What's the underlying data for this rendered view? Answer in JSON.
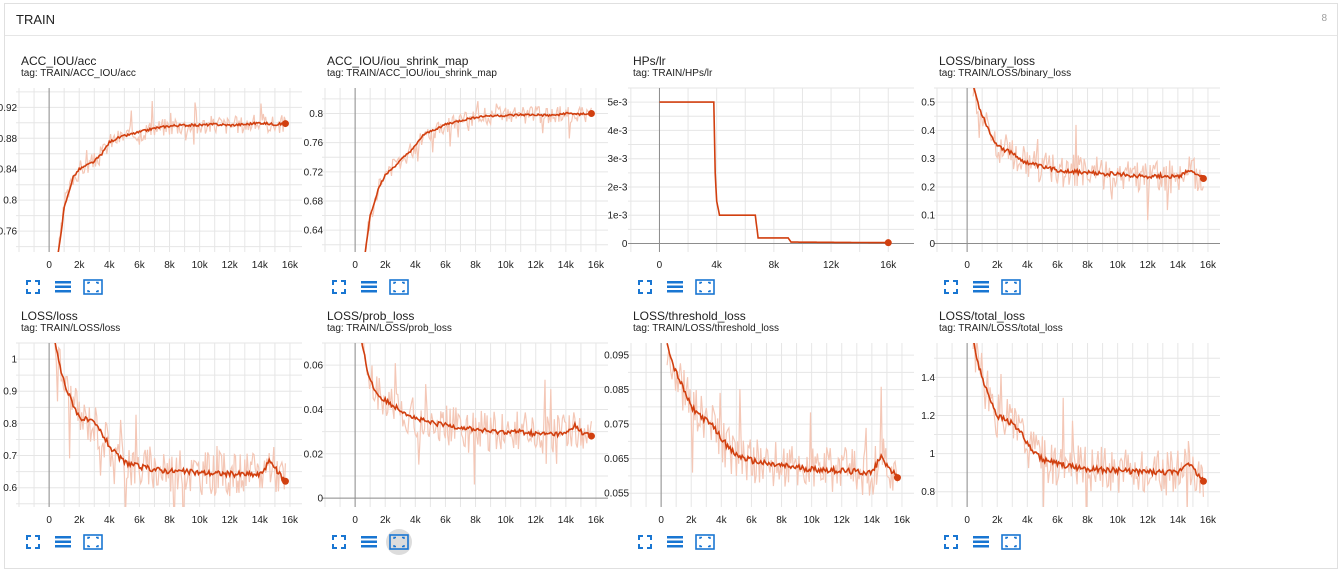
{
  "section": {
    "title": "TRAIN",
    "count": "8"
  },
  "colors": {
    "line": "#d13f0f",
    "band": "#f4c7b6",
    "grid": "#e6e6e6",
    "axis": "#8d8d8d",
    "icon": "#1976d2"
  },
  "toolbar": {
    "icons": [
      "fit-domain-icon",
      "toggle-log-scale-icon",
      "download-data-icon"
    ]
  },
  "cards": [
    {
      "title": "ACC_IOU/acc",
      "tag": "tag: TRAIN/ACC_IOU/acc",
      "chart_data": {
        "type": "line",
        "x_ticks": [
          "0",
          "2k",
          "4k",
          "6k",
          "8k",
          "10k",
          "12k",
          "14k",
          "16k"
        ],
        "y_ticks": [
          "0.76",
          "0.8",
          "0.84",
          "0.88",
          "0.92"
        ],
        "x_range": [
          -2200,
          16800
        ],
        "y_range": [
          0.733,
          0.945
        ],
        "points": [
          [
            600,
            0.73
          ],
          [
            800,
            0.76
          ],
          [
            1000,
            0.79
          ],
          [
            1300,
            0.81
          ],
          [
            1600,
            0.83
          ],
          [
            2000,
            0.84
          ],
          [
            2500,
            0.845
          ],
          [
            3000,
            0.85
          ],
          [
            3500,
            0.86
          ],
          [
            4000,
            0.875
          ],
          [
            4500,
            0.88
          ],
          [
            5000,
            0.883
          ],
          [
            6000,
            0.888
          ],
          [
            7000,
            0.893
          ],
          [
            8000,
            0.896
          ],
          [
            9000,
            0.897
          ],
          [
            10000,
            0.897
          ],
          [
            11000,
            0.898
          ],
          [
            12000,
            0.897
          ],
          [
            13000,
            0.898
          ],
          [
            14000,
            0.9
          ],
          [
            15000,
            0.898
          ],
          [
            15700,
            0.899
          ]
        ],
        "band_amp": 0.012
      }
    },
    {
      "title": "ACC_IOU/iou_shrink_map",
      "tag": "tag: TRAIN/ACC_IOU/iou_shrink_map",
      "chart_data": {
        "type": "line",
        "x_ticks": [
          "0",
          "2k",
          "4k",
          "6k",
          "8k",
          "10k",
          "12k",
          "14k",
          "16k"
        ],
        "y_ticks": [
          "0.64",
          "0.68",
          "0.72",
          "0.76",
          "0.8"
        ],
        "x_range": [
          -2200,
          16800
        ],
        "y_range": [
          0.61,
          0.835
        ],
        "points": [
          [
            600,
            0.6
          ],
          [
            800,
            0.63
          ],
          [
            1000,
            0.66
          ],
          [
            1300,
            0.68
          ],
          [
            1600,
            0.7
          ],
          [
            2000,
            0.715
          ],
          [
            2500,
            0.725
          ],
          [
            3000,
            0.735
          ],
          [
            3500,
            0.745
          ],
          [
            4000,
            0.755
          ],
          [
            4500,
            0.77
          ],
          [
            5000,
            0.775
          ],
          [
            6000,
            0.785
          ],
          [
            7000,
            0.79
          ],
          [
            8000,
            0.795
          ],
          [
            9000,
            0.797
          ],
          [
            10000,
            0.797
          ],
          [
            11000,
            0.798
          ],
          [
            12000,
            0.798
          ],
          [
            13000,
            0.797
          ],
          [
            14000,
            0.8
          ],
          [
            15000,
            0.799
          ],
          [
            15700,
            0.8
          ]
        ],
        "band_amp": 0.012
      }
    },
    {
      "title": "HPs/lr",
      "tag": "tag: TRAIN/HPs/lr",
      "chart_data": {
        "type": "line",
        "x_ticks": [
          "0",
          "4k",
          "8k",
          "12k",
          "16k"
        ],
        "y_ticks": [
          "0",
          "1e-3",
          "2e-3",
          "3e-3",
          "4e-3",
          "5e-3"
        ],
        "x_range": [
          -2200,
          17800
        ],
        "y_range": [
          -0.0003,
          0.0055
        ],
        "points": [
          [
            0,
            0.005
          ],
          [
            3800,
            0.005
          ],
          [
            3900,
            0.0025
          ],
          [
            4000,
            0.0015
          ],
          [
            4200,
            0.001
          ],
          [
            6700,
            0.001
          ],
          [
            6900,
            0.0002
          ],
          [
            9000,
            0.0002
          ],
          [
            9200,
            5e-05
          ],
          [
            16000,
            3e-05
          ]
        ],
        "band_amp": 0
      }
    },
    {
      "title": "LOSS/binary_loss",
      "tag": "tag: TRAIN/LOSS/binary_loss",
      "chart_data": {
        "type": "line",
        "x_ticks": [
          "0",
          "2k",
          "4k",
          "6k",
          "8k",
          "10k",
          "12k",
          "14k",
          "16k"
        ],
        "y_ticks": [
          "0",
          "0.1",
          "0.2",
          "0.3",
          "0.4",
          "0.5"
        ],
        "x_range": [
          -2200,
          16800
        ],
        "y_range": [
          -0.03,
          0.55
        ],
        "points": [
          [
            400,
            0.56
          ],
          [
            800,
            0.48
          ],
          [
            1200,
            0.43
          ],
          [
            1600,
            0.38
          ],
          [
            2000,
            0.35
          ],
          [
            2500,
            0.33
          ],
          [
            3000,
            0.32
          ],
          [
            3500,
            0.3
          ],
          [
            4000,
            0.285
          ],
          [
            5000,
            0.27
          ],
          [
            6000,
            0.26
          ],
          [
            7000,
            0.255
          ],
          [
            8000,
            0.25
          ],
          [
            9000,
            0.247
          ],
          [
            10000,
            0.245
          ],
          [
            11000,
            0.24
          ],
          [
            12000,
            0.238
          ],
          [
            13000,
            0.24
          ],
          [
            14000,
            0.235
          ],
          [
            14600,
            0.258
          ],
          [
            15000,
            0.25
          ],
          [
            15700,
            0.23
          ]
        ],
        "band_amp": 0.06
      }
    },
    {
      "title": "LOSS/loss",
      "tag": "tag: TRAIN/LOSS/loss",
      "chart_data": {
        "type": "line",
        "x_ticks": [
          "0",
          "2k",
          "4k",
          "6k",
          "8k",
          "10k",
          "12k",
          "14k",
          "16k"
        ],
        "y_ticks": [
          "0.6",
          "0.7",
          "0.8",
          "0.9",
          "1"
        ],
        "x_range": [
          -2200,
          16800
        ],
        "y_range": [
          0.54,
          1.05
        ],
        "points": [
          [
            400,
            1.05
          ],
          [
            800,
            0.96
          ],
          [
            1200,
            0.9
          ],
          [
            1600,
            0.86
          ],
          [
            2000,
            0.82
          ],
          [
            2500,
            0.81
          ],
          [
            3000,
            0.8
          ],
          [
            3500,
            0.77
          ],
          [
            4000,
            0.73
          ],
          [
            4500,
            0.7
          ],
          [
            5000,
            0.68
          ],
          [
            6000,
            0.665
          ],
          [
            7000,
            0.657
          ],
          [
            8000,
            0.652
          ],
          [
            9000,
            0.65
          ],
          [
            10000,
            0.647
          ],
          [
            11000,
            0.645
          ],
          [
            12000,
            0.643
          ],
          [
            13000,
            0.642
          ],
          [
            14000,
            0.64
          ],
          [
            14700,
            0.685
          ],
          [
            15000,
            0.66
          ],
          [
            15700,
            0.62
          ]
        ],
        "band_amp": 0.07
      }
    },
    {
      "title": "LOSS/prob_loss",
      "tag": "tag: TRAIN/LOSS/prob_loss",
      "chart_data": {
        "type": "line",
        "x_ticks": [
          "0",
          "2k",
          "4k",
          "6k",
          "8k",
          "10k",
          "12k",
          "14k",
          "16k"
        ],
        "y_ticks": [
          "0",
          "0.02",
          "0.04",
          "0.06"
        ],
        "x_range": [
          -2200,
          16800
        ],
        "y_range": [
          -0.004,
          0.07
        ],
        "points": [
          [
            400,
            0.072
          ],
          [
            800,
            0.058
          ],
          [
            1200,
            0.05
          ],
          [
            1600,
            0.046
          ],
          [
            2000,
            0.044
          ],
          [
            2500,
            0.042
          ],
          [
            3000,
            0.04
          ],
          [
            3500,
            0.038
          ],
          [
            4000,
            0.036
          ],
          [
            5000,
            0.034
          ],
          [
            6000,
            0.033
          ],
          [
            7000,
            0.032
          ],
          [
            8000,
            0.031
          ],
          [
            9000,
            0.03
          ],
          [
            10000,
            0.03
          ],
          [
            11000,
            0.03
          ],
          [
            12000,
            0.029
          ],
          [
            13000,
            0.029
          ],
          [
            14000,
            0.029
          ],
          [
            14600,
            0.033
          ],
          [
            15000,
            0.03
          ],
          [
            15700,
            0.028
          ]
        ],
        "band_amp": 0.009
      }
    },
    {
      "title": "LOSS/threshold_loss",
      "tag": "tag: TRAIN/LOSS/threshold_loss",
      "chart_data": {
        "type": "line",
        "x_ticks": [
          "0",
          "2k",
          "4k",
          "6k",
          "8k",
          "10k",
          "12k",
          "14k",
          "16k"
        ],
        "y_ticks": [
          "0.055",
          "0.065",
          "0.075",
          "0.085",
          "0.095"
        ],
        "x_range": [
          -2200,
          16800
        ],
        "y_range": [
          0.051,
          0.0985
        ],
        "points": [
          [
            400,
            0.099
          ],
          [
            800,
            0.092
          ],
          [
            1200,
            0.088
          ],
          [
            1600,
            0.084
          ],
          [
            2000,
            0.08
          ],
          [
            2500,
            0.078
          ],
          [
            3000,
            0.076
          ],
          [
            3500,
            0.074
          ],
          [
            4000,
            0.071
          ],
          [
            4500,
            0.068
          ],
          [
            5000,
            0.066
          ],
          [
            6000,
            0.0645
          ],
          [
            7000,
            0.0635
          ],
          [
            8000,
            0.063
          ],
          [
            9000,
            0.0625
          ],
          [
            10000,
            0.062
          ],
          [
            11000,
            0.0618
          ],
          [
            12000,
            0.0615
          ],
          [
            13000,
            0.0612
          ],
          [
            14000,
            0.061
          ],
          [
            14700,
            0.066
          ],
          [
            15000,
            0.063
          ],
          [
            15700,
            0.0595
          ]
        ],
        "band_amp": 0.007
      }
    },
    {
      "title": "LOSS/total_loss",
      "tag": "tag: TRAIN/LOSS/total_loss",
      "chart_data": {
        "type": "line",
        "x_ticks": [
          "0",
          "2k",
          "4k",
          "6k",
          "8k",
          "10k",
          "12k",
          "14k",
          "16k"
        ],
        "y_ticks": [
          "0.8",
          "1",
          "1.2",
          "1.4"
        ],
        "x_range": [
          -2200,
          16800
        ],
        "y_range": [
          0.72,
          1.58
        ],
        "points": [
          [
            400,
            1.6
          ],
          [
            800,
            1.45
          ],
          [
            1200,
            1.35
          ],
          [
            1600,
            1.28
          ],
          [
            2000,
            1.2
          ],
          [
            2500,
            1.18
          ],
          [
            3000,
            1.16
          ],
          [
            3500,
            1.12
          ],
          [
            4000,
            1.05
          ],
          [
            4500,
            1.0
          ],
          [
            5000,
            0.97
          ],
          [
            6000,
            0.945
          ],
          [
            7000,
            0.93
          ],
          [
            8000,
            0.92
          ],
          [
            9000,
            0.915
          ],
          [
            10000,
            0.91
          ],
          [
            11000,
            0.907
          ],
          [
            12000,
            0.903
          ],
          [
            13000,
            0.9
          ],
          [
            14000,
            0.898
          ],
          [
            14700,
            0.96
          ],
          [
            15000,
            0.92
          ],
          [
            15700,
            0.855
          ]
        ],
        "band_amp": 0.12
      }
    }
  ]
}
